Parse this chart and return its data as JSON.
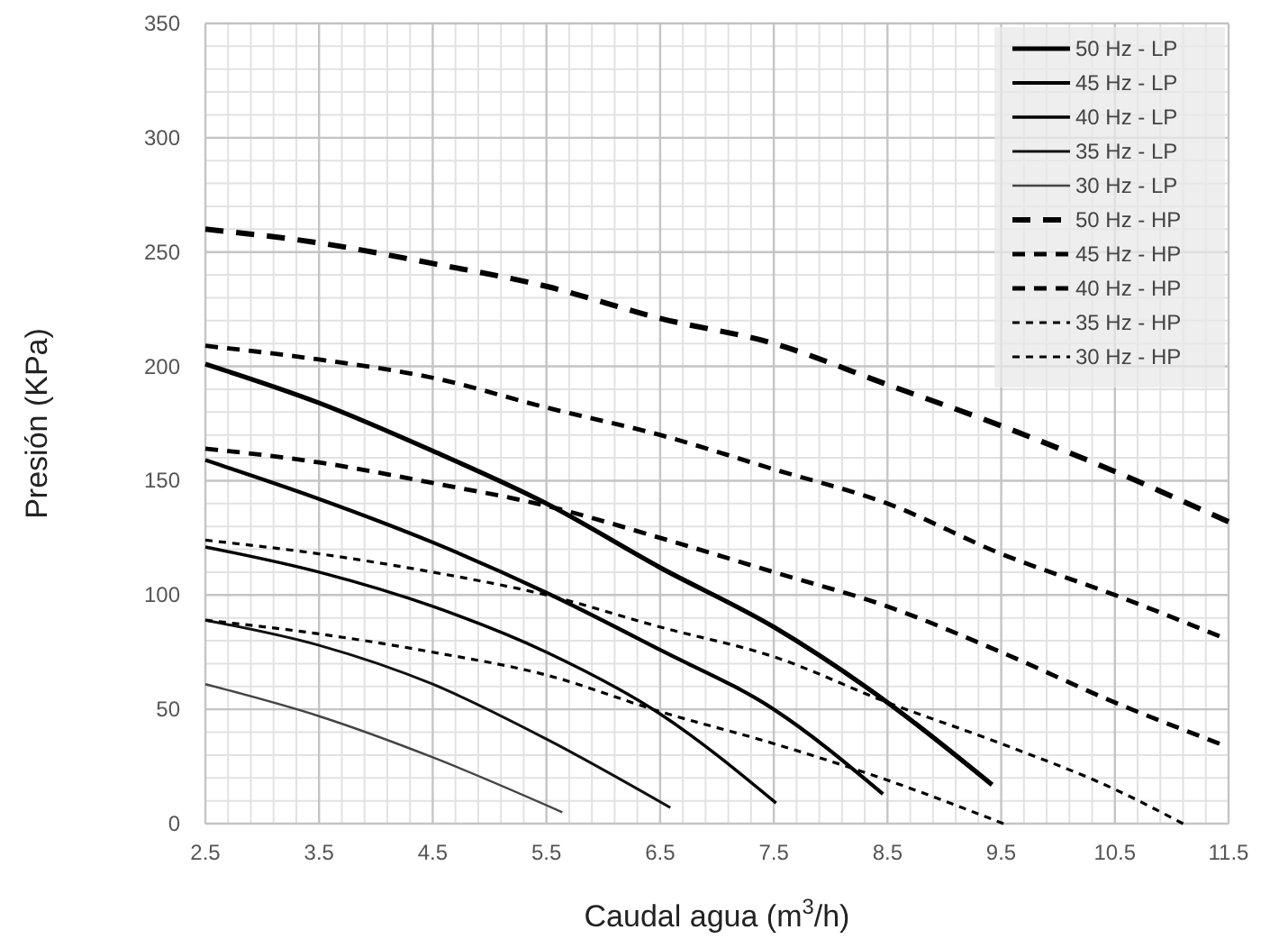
{
  "chart_data": {
    "type": "line",
    "xlabel": "Caudal agua (m$^{3}$/h)",
    "ylabel": "Presión (KPa)",
    "xlim": [
      2.5,
      11.5
    ],
    "xticks": [
      2.5,
      3.5,
      4.5,
      5.5,
      6.5,
      7.5,
      8.5,
      9.5,
      10.5,
      11.5
    ],
    "ylim": [
      0,
      350
    ],
    "yticks": [
      0,
      50,
      100,
      150,
      200,
      250,
      300,
      350
    ],
    "grid": true,
    "legend": "top right",
    "marker": "none",
    "series": [
      {
        "name": "50 Hz - LP",
        "color": "#000000",
        "line_style": "solid",
        "x": [
          2.5,
          3.5,
          4.5,
          5.5,
          6.5,
          7.5,
          8.5,
          9.42
        ],
        "values": [
          201,
          184,
          163,
          140,
          112,
          86,
          53,
          17
        ]
      },
      {
        "name": "45 Hz - LP",
        "color": "#000000",
        "line_style": "solid",
        "x": [
          2.5,
          3.5,
          4.5,
          5.5,
          6.5,
          7.5,
          8.46
        ],
        "values": [
          159,
          142,
          123,
          101,
          76,
          50,
          13
        ]
      },
      {
        "name": "40 Hz - LP",
        "color": "#000000",
        "line_style": "solid",
        "x": [
          2.5,
          3.5,
          4.5,
          5.5,
          6.5,
          7.52
        ],
        "values": [
          121,
          110,
          95,
          75,
          48,
          9
        ]
      },
      {
        "name": "35 Hz - LP",
        "color": "#111111",
        "line_style": "solid",
        "x": [
          2.5,
          3.5,
          4.5,
          5.5,
          6.59
        ],
        "values": [
          89,
          78,
          61,
          37,
          7
        ]
      },
      {
        "name": "30 Hz - LP",
        "color": "#444444",
        "line_style": "solid",
        "x": [
          2.5,
          3.5,
          4.5,
          5.64
        ],
        "values": [
          61,
          47,
          29,
          5
        ]
      },
      {
        "name": "50 Hz - HP",
        "color": "#000000",
        "line_style": "dashed",
        "x": [
          2.5,
          3.5,
          4.5,
          5.5,
          6.5,
          7.5,
          8.5,
          9.5,
          10.5,
          11.5
        ],
        "values": [
          260,
          254,
          245,
          235,
          221,
          210,
          192,
          174,
          154,
          132
        ]
      },
      {
        "name": "45 Hz - HP",
        "color": "#000000",
        "line_style": "dashed",
        "x": [
          2.5,
          3.5,
          4.5,
          5.5,
          6.5,
          7.5,
          8.5,
          9.5,
          10.5,
          11.42
        ],
        "values": [
          209,
          203,
          195,
          182,
          170,
          155,
          140,
          118,
          100,
          82
        ]
      },
      {
        "name": "40 Hz - HP",
        "color": "#000000",
        "line_style": "dashed",
        "x": [
          2.5,
          3.5,
          4.5,
          5.5,
          6.5,
          7.5,
          8.5,
          9.5,
          10.5,
          11.42
        ],
        "values": [
          164,
          158,
          149,
          139,
          125,
          110,
          95,
          75,
          53,
          35
        ]
      },
      {
        "name": "35 Hz - HP",
        "color": "#000000",
        "line_style": "dashed",
        "x": [
          2.5,
          3.5,
          4.5,
          5.5,
          6.5,
          7.5,
          8.5,
          9.5,
          10.5,
          11.1
        ],
        "values": [
          124,
          118,
          110,
          100,
          86,
          73,
          53,
          35,
          15,
          0
        ]
      },
      {
        "name": "30 Hz - HP",
        "color": "#000000",
        "line_style": "dashed",
        "x": [
          2.5,
          3.5,
          4.5,
          5.5,
          6.5,
          7.5,
          8.5,
          9.52
        ],
        "values": [
          89,
          83,
          75,
          65,
          49,
          35,
          19,
          0
        ]
      }
    ]
  }
}
